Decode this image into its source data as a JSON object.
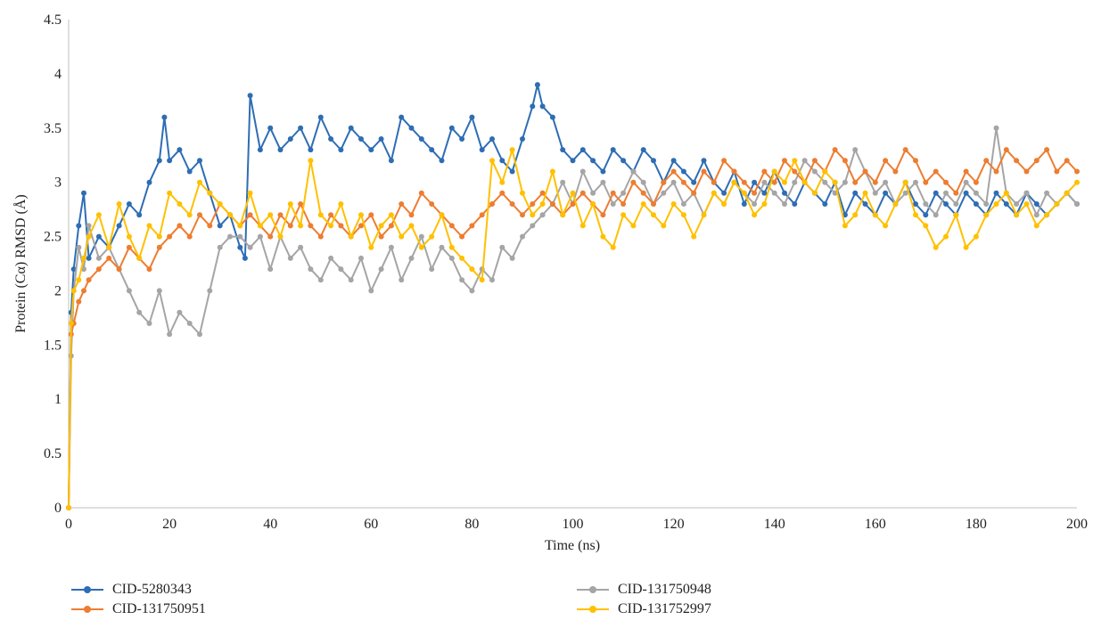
{
  "chart_data": {
    "type": "line",
    "xlabel": "Time (ns)",
    "ylabel": "Protein (Cα) RMSD (Å)",
    "xlim": [
      0,
      200
    ],
    "ylim": [
      0,
      4.5
    ],
    "x_ticks": [
      "0",
      "20",
      "40",
      "60",
      "80",
      "100",
      "120",
      "140",
      "160",
      "180",
      "200"
    ],
    "y_ticks": [
      "0",
      "0.5",
      "1",
      "1.5",
      "2",
      "2.5",
      "3",
      "3.5",
      "4",
      "4.5"
    ],
    "grid": false,
    "legend_position": "bottom",
    "markers": true,
    "series": [
      {
        "name": "CID-5280343",
        "color": "#2E6DB4",
        "x": [
          0,
          0.5,
          1,
          2,
          3,
          4,
          6,
          8,
          10,
          12,
          14,
          16,
          18,
          19,
          20,
          22,
          24,
          26,
          28,
          30,
          32,
          34,
          35,
          36,
          38,
          40,
          42,
          44,
          46,
          48,
          50,
          52,
          54,
          56,
          58,
          60,
          62,
          64,
          66,
          68,
          70,
          72,
          74,
          76,
          78,
          80,
          82,
          84,
          86,
          88,
          90,
          92,
          93,
          94,
          96,
          98,
          100,
          102,
          104,
          106,
          108,
          110,
          112,
          114,
          116,
          118,
          120,
          122,
          124,
          126,
          128,
          130,
          132,
          134,
          136,
          138,
          140,
          142,
          144,
          146,
          148,
          150,
          152,
          154,
          156,
          158,
          160,
          162,
          164,
          166,
          168,
          170,
          172,
          174,
          176,
          178,
          180,
          182,
          184,
          186,
          188,
          190,
          192,
          194,
          196,
          198,
          200
        ],
        "y": [
          0,
          1.8,
          2.2,
          2.6,
          2.9,
          2.3,
          2.5,
          2.4,
          2.6,
          2.8,
          2.7,
          3.0,
          3.2,
          3.6,
          3.2,
          3.3,
          3.1,
          3.2,
          2.9,
          2.6,
          2.7,
          2.4,
          2.3,
          3.8,
          3.3,
          3.5,
          3.3,
          3.4,
          3.5,
          3.3,
          3.6,
          3.4,
          3.3,
          3.5,
          3.4,
          3.3,
          3.4,
          3.2,
          3.6,
          3.5,
          3.4,
          3.3,
          3.2,
          3.5,
          3.4,
          3.6,
          3.3,
          3.4,
          3.2,
          3.1,
          3.4,
          3.7,
          3.9,
          3.7,
          3.6,
          3.3,
          3.2,
          3.3,
          3.2,
          3.1,
          3.3,
          3.2,
          3.1,
          3.3,
          3.2,
          3.0,
          3.2,
          3.1,
          3.0,
          3.2,
          3.0,
          2.9,
          3.1,
          2.8,
          3.0,
          2.9,
          3.1,
          2.9,
          2.8,
          3.0,
          2.9,
          2.8,
          3.0,
          2.7,
          2.9,
          2.8,
          2.7,
          2.9,
          2.8,
          3.0,
          2.8,
          2.7,
          2.9,
          2.8,
          2.7,
          2.9,
          2.8,
          2.7,
          2.9,
          2.8,
          2.7,
          2.9,
          2.8,
          2.7,
          2.8,
          2.9,
          2.8
        ]
      },
      {
        "name": "CID-131750948",
        "color": "#A5A5A5",
        "x": [
          0,
          0.5,
          1,
          2,
          3,
          4,
          6,
          8,
          10,
          12,
          14,
          16,
          18,
          20,
          22,
          24,
          26,
          28,
          30,
          32,
          34,
          36,
          38,
          40,
          42,
          44,
          46,
          48,
          50,
          52,
          54,
          56,
          58,
          60,
          62,
          64,
          66,
          68,
          70,
          72,
          74,
          76,
          78,
          80,
          82,
          84,
          86,
          88,
          90,
          92,
          94,
          96,
          98,
          100,
          102,
          104,
          106,
          108,
          110,
          112,
          114,
          116,
          118,
          120,
          122,
          124,
          126,
          128,
          130,
          132,
          134,
          136,
          138,
          140,
          142,
          144,
          146,
          148,
          150,
          152,
          154,
          156,
          158,
          160,
          162,
          164,
          166,
          168,
          170,
          172,
          174,
          176,
          178,
          180,
          182,
          184,
          186,
          188,
          190,
          192,
          194,
          196,
          198,
          200
        ],
        "y": [
          0,
          1.4,
          2.0,
          2.4,
          2.2,
          2.6,
          2.3,
          2.4,
          2.2,
          2.0,
          1.8,
          1.7,
          2.0,
          1.6,
          1.8,
          1.7,
          1.6,
          2.0,
          2.4,
          2.5,
          2.5,
          2.4,
          2.5,
          2.2,
          2.5,
          2.3,
          2.4,
          2.2,
          2.1,
          2.3,
          2.2,
          2.1,
          2.3,
          2.0,
          2.2,
          2.4,
          2.1,
          2.3,
          2.5,
          2.2,
          2.4,
          2.3,
          2.1,
          2.0,
          2.2,
          2.1,
          2.4,
          2.3,
          2.5,
          2.6,
          2.7,
          2.8,
          3.0,
          2.8,
          3.1,
          2.9,
          3.0,
          2.8,
          2.9,
          3.1,
          3.0,
          2.8,
          2.9,
          3.0,
          2.8,
          2.9,
          2.7,
          2.9,
          2.8,
          3.0,
          2.9,
          2.8,
          3.0,
          2.9,
          2.8,
          3.0,
          3.2,
          3.1,
          3.0,
          2.9,
          3.0,
          3.3,
          3.1,
          2.9,
          3.0,
          2.8,
          2.9,
          3.0,
          2.8,
          2.7,
          2.9,
          2.8,
          3.0,
          2.9,
          2.8,
          3.5,
          2.9,
          2.8,
          2.9,
          2.7,
          2.9,
          2.8,
          2.9,
          2.8
        ]
      },
      {
        "name": "CID-131750951",
        "color": "#ED7D31",
        "x": [
          0,
          0.5,
          1,
          2,
          3,
          4,
          6,
          8,
          10,
          12,
          14,
          16,
          18,
          20,
          22,
          24,
          26,
          28,
          30,
          32,
          34,
          36,
          38,
          40,
          42,
          44,
          46,
          48,
          50,
          52,
          54,
          56,
          58,
          60,
          62,
          64,
          66,
          68,
          70,
          72,
          74,
          76,
          78,
          80,
          82,
          84,
          86,
          88,
          90,
          92,
          94,
          96,
          98,
          100,
          102,
          104,
          106,
          108,
          110,
          112,
          114,
          116,
          118,
          120,
          122,
          124,
          126,
          128,
          130,
          132,
          134,
          136,
          138,
          140,
          142,
          144,
          146,
          148,
          150,
          152,
          154,
          156,
          158,
          160,
          162,
          164,
          166,
          168,
          170,
          172,
          174,
          176,
          178,
          180,
          182,
          184,
          186,
          188,
          190,
          192,
          194,
          196,
          198,
          200
        ],
        "y": [
          0,
          1.6,
          1.7,
          1.9,
          2.0,
          2.1,
          2.2,
          2.3,
          2.2,
          2.4,
          2.3,
          2.2,
          2.4,
          2.5,
          2.6,
          2.5,
          2.7,
          2.6,
          2.8,
          2.7,
          2.6,
          2.7,
          2.6,
          2.5,
          2.7,
          2.6,
          2.8,
          2.6,
          2.5,
          2.7,
          2.6,
          2.5,
          2.6,
          2.7,
          2.5,
          2.6,
          2.8,
          2.7,
          2.9,
          2.8,
          2.7,
          2.6,
          2.5,
          2.6,
          2.7,
          2.8,
          2.9,
          2.8,
          2.7,
          2.8,
          2.9,
          2.8,
          2.7,
          2.8,
          2.9,
          2.8,
          2.7,
          2.9,
          2.8,
          3.0,
          2.9,
          2.8,
          3.0,
          3.1,
          3.0,
          2.9,
          3.1,
          3.0,
          3.2,
          3.1,
          3.0,
          2.9,
          3.1,
          3.0,
          3.2,
          3.1,
          3.0,
          3.2,
          3.1,
          3.3,
          3.2,
          3.0,
          3.1,
          3.0,
          3.2,
          3.1,
          3.3,
          3.2,
          3.0,
          3.1,
          3.0,
          2.9,
          3.1,
          3.0,
          3.2,
          3.1,
          3.3,
          3.2,
          3.1,
          3.2,
          3.3,
          3.1,
          3.2,
          3.1
        ]
      },
      {
        "name": "CID-131752997",
        "color": "#FFC000",
        "x": [
          0,
          0.5,
          1,
          2,
          3,
          4,
          6,
          8,
          10,
          12,
          14,
          16,
          18,
          20,
          22,
          24,
          26,
          28,
          30,
          32,
          34,
          36,
          38,
          40,
          42,
          44,
          46,
          48,
          50,
          52,
          54,
          56,
          58,
          60,
          62,
          64,
          66,
          68,
          70,
          72,
          74,
          76,
          78,
          80,
          82,
          84,
          86,
          88,
          90,
          92,
          94,
          96,
          98,
          100,
          102,
          104,
          106,
          108,
          110,
          112,
          114,
          116,
          118,
          120,
          122,
          124,
          126,
          128,
          130,
          132,
          134,
          136,
          138,
          140,
          142,
          144,
          146,
          148,
          150,
          152,
          154,
          156,
          158,
          160,
          162,
          164,
          166,
          168,
          170,
          172,
          174,
          176,
          178,
          180,
          182,
          184,
          186,
          188,
          190,
          192,
          194,
          196,
          198,
          200
        ],
        "y": [
          0,
          1.7,
          2.0,
          2.1,
          2.3,
          2.5,
          2.7,
          2.4,
          2.8,
          2.5,
          2.3,
          2.6,
          2.5,
          2.9,
          2.8,
          2.7,
          3.0,
          2.9,
          2.8,
          2.7,
          2.6,
          2.9,
          2.6,
          2.7,
          2.5,
          2.8,
          2.6,
          3.2,
          2.7,
          2.6,
          2.8,
          2.5,
          2.7,
          2.4,
          2.6,
          2.7,
          2.5,
          2.6,
          2.4,
          2.5,
          2.7,
          2.4,
          2.3,
          2.2,
          2.1,
          3.2,
          3.0,
          3.3,
          2.9,
          2.7,
          2.8,
          3.1,
          2.7,
          2.9,
          2.6,
          2.8,
          2.5,
          2.4,
          2.7,
          2.6,
          2.8,
          2.7,
          2.6,
          2.8,
          2.7,
          2.5,
          2.7,
          2.9,
          2.8,
          3.0,
          2.9,
          2.7,
          2.8,
          3.1,
          3.0,
          3.2,
          3.0,
          2.9,
          3.1,
          3.0,
          2.6,
          2.7,
          2.9,
          2.7,
          2.6,
          2.8,
          3.0,
          2.7,
          2.6,
          2.4,
          2.5,
          2.7,
          2.4,
          2.5,
          2.7,
          2.8,
          2.9,
          2.7,
          2.8,
          2.6,
          2.7,
          2.8,
          2.9,
          3.0
        ]
      }
    ]
  }
}
